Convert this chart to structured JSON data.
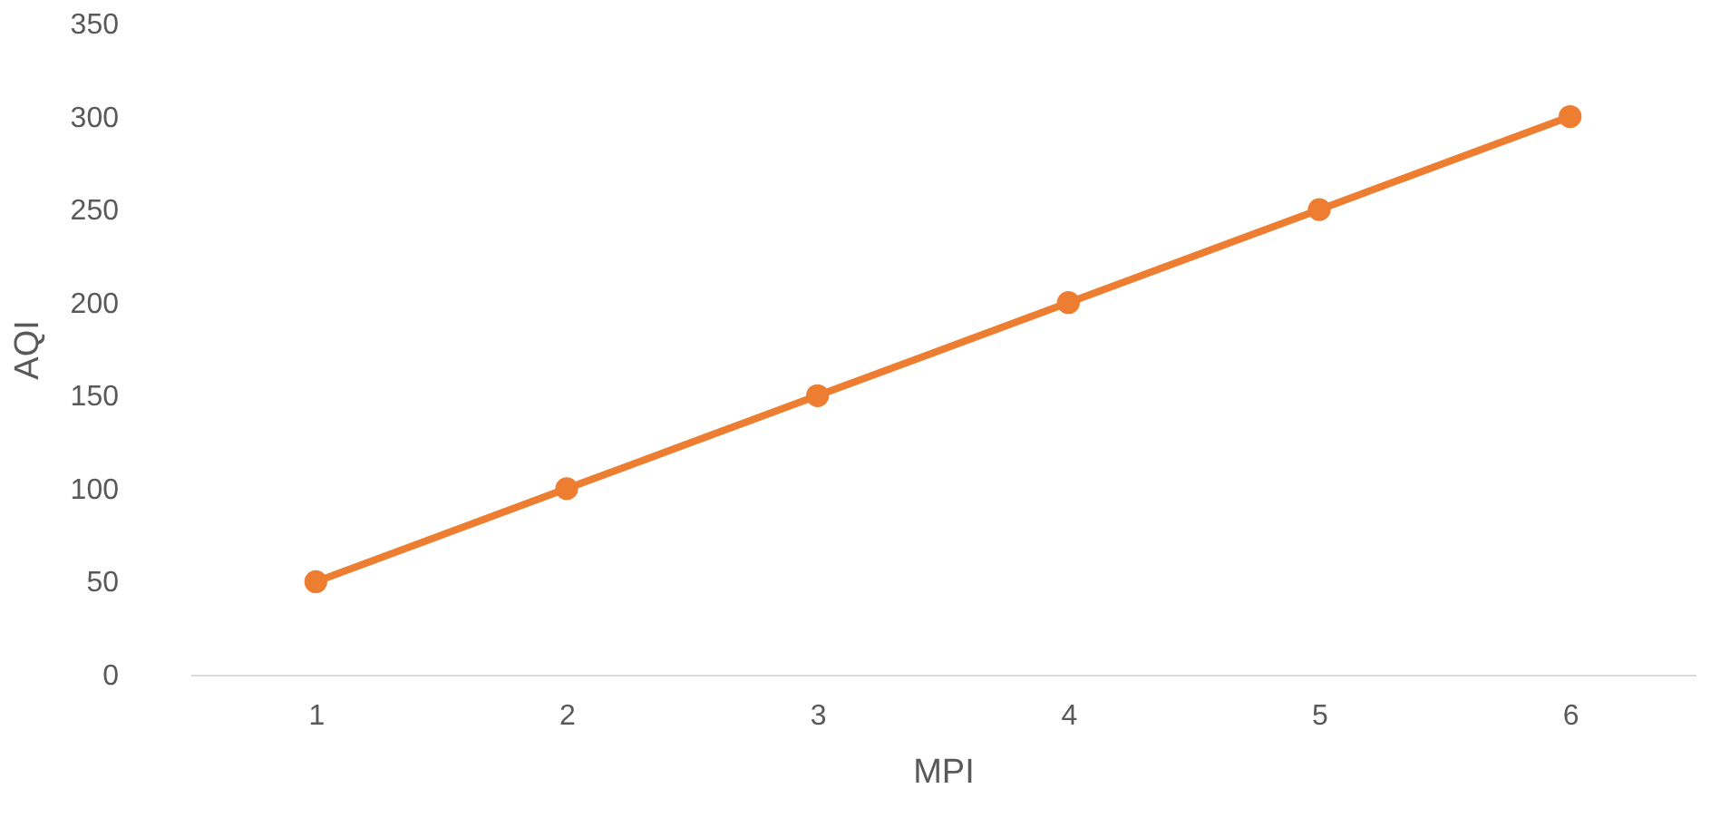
{
  "chart_data": {
    "type": "line",
    "xlabel": "MPI",
    "ylabel": "AQI",
    "categories": [
      "1",
      "2",
      "3",
      "4",
      "5",
      "6"
    ],
    "series": [
      {
        "color": "#ed7d31",
        "values": [
          50,
          100,
          150,
          200,
          250,
          300
        ]
      }
    ],
    "ylim": [
      0,
      350
    ],
    "yticks": [
      0,
      50,
      100,
      150,
      200,
      250,
      300,
      350
    ],
    "grid": false,
    "marker": "circle",
    "line_style": "solid"
  }
}
